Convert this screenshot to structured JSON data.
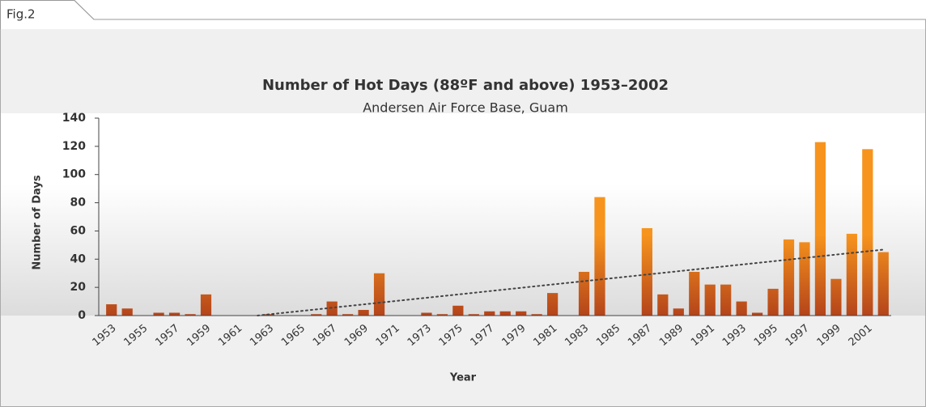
{
  "figure_label": "Fig.2",
  "chart_data": {
    "type": "bar",
    "title": "Number of Hot Days (88ºF and above) 1953–2002",
    "subtitle": "Andersen Air Force Base, Guam",
    "y_label": "Number of Days",
    "x_label": "Year",
    "categories": [
      "1953",
      null,
      "1955",
      null,
      "1957",
      null,
      "1959",
      null,
      "1961",
      null,
      "1963",
      null,
      "1965",
      null,
      "1967",
      null,
      "1969",
      null,
      "1971",
      null,
      "1973",
      null,
      "1975",
      null,
      "1977",
      null,
      "1979",
      null,
      "1981",
      null,
      "1983",
      null,
      "1985",
      null,
      "1987",
      null,
      "1989",
      null,
      "1991",
      null,
      "1993",
      null,
      "1995",
      null,
      "1997",
      null,
      "1999",
      null,
      "2001",
      null
    ],
    "values": [
      8,
      5,
      0,
      2,
      2,
      1,
      15,
      0,
      0,
      0,
      1,
      0,
      0,
      1,
      10,
      1,
      4,
      30,
      0,
      0,
      2,
      1,
      7,
      1,
      3,
      3,
      3,
      1,
      16,
      0,
      31,
      84,
      0,
      0,
      62,
      15,
      5,
      31,
      22,
      22,
      10,
      2,
      19,
      54,
      52,
      123,
      26,
      58,
      118,
      45
    ],
    "color": "#f7941d",
    "trendline": true,
    "ylim": [
      0,
      140
    ],
    "yticks": [
      0,
      20,
      40,
      60,
      80,
      100,
      120,
      140
    ]
  }
}
